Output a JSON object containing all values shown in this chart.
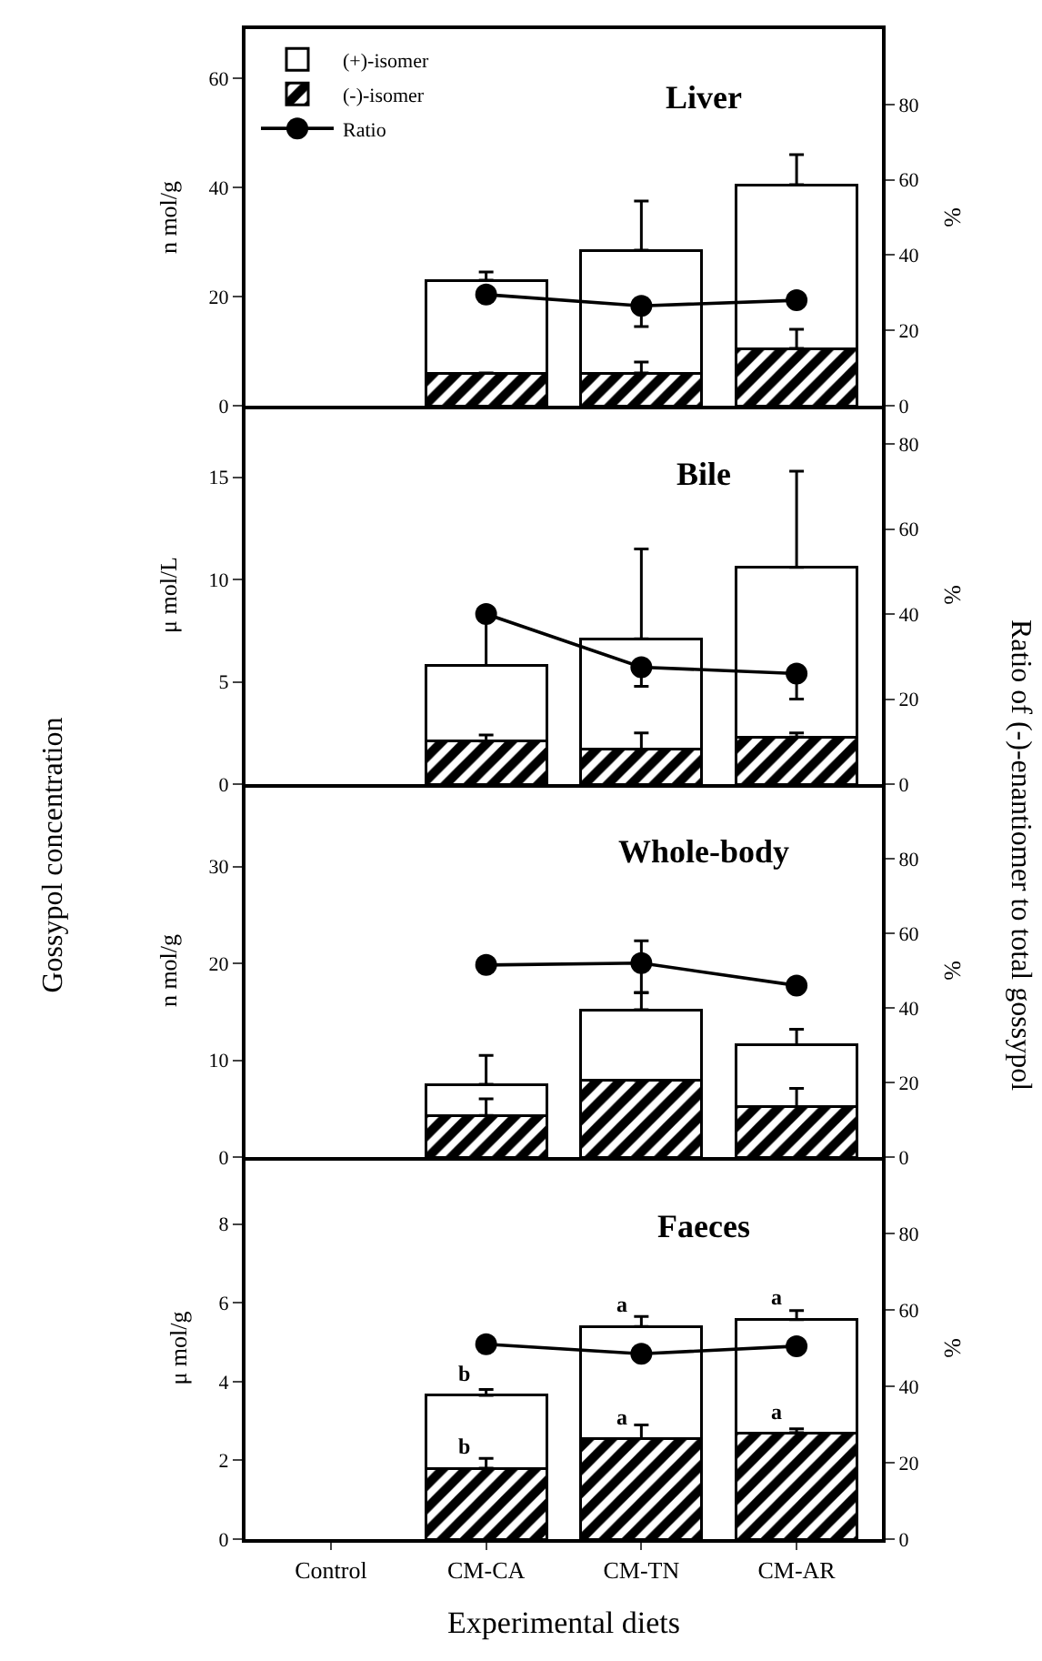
{
  "chart_data": [
    {
      "type": "bar",
      "stacked": true,
      "title": "Liver",
      "ylabel": "n mol/g",
      "y2label": "%",
      "categories": [
        null,
        null,
        null,
        null
      ],
      "series": [
        {
          "name": "(-)-isomer",
          "color": "#000000",
          "values": [
            null,
            6,
            6,
            10.5
          ],
          "errors": [
            null,
            null,
            [
              6,
              8
            ],
            [
              10.5,
              14
            ]
          ]
        },
        {
          "name": "(+)-isomer",
          "color": "#ffffff",
          "values": [
            null,
            17,
            22.5,
            30
          ],
          "errors": [
            null,
            [
              23,
              24.5
            ],
            [
              28.5,
              37.5
            ],
            [
              40.5,
              46
            ]
          ]
        },
        {
          "name": "Ratio",
          "type": "line",
          "axis": "y2",
          "color": "#000000",
          "values": [
            null,
            29.5,
            26.5,
            28
          ],
          "errors": [
            null,
            null,
            [
              21,
              26.5
            ],
            null
          ]
        }
      ],
      "ylim": [
        0,
        69
      ],
      "yticks": [
        0,
        20,
        40,
        60
      ],
      "y2lim": [
        0,
        100
      ],
      "y2ticks": [
        0,
        20,
        40,
        60,
        80
      ],
      "grid": false,
      "legend": "top left",
      "marker": "circle",
      "tick_labels": "y",
      "annotations": [
        "Gossypol concentration",
        "Ratio of (-)-enantiomer to total gossypol"
      ]
    },
    {
      "type": "bar",
      "stacked": true,
      "title": "Bile",
      "ylabel": "μ mol/L",
      "y2label": "%",
      "categories": [
        null,
        null,
        null,
        null
      ],
      "series": [
        {
          "color": "#000000",
          "values": [
            null,
            2.1,
            1.7,
            2.3
          ],
          "errors": [
            null,
            [
              2.1,
              2.4
            ],
            [
              1.7,
              2.5
            ],
            [
              2.3,
              2.5
            ]
          ]
        },
        {
          "color": "#ffffff",
          "values": [
            null,
            3.7,
            5.4,
            8.3
          ],
          "errors": [
            null,
            [
              5.8,
              8
            ],
            [
              7.1,
              11.5
            ],
            [
              10.6,
              15.3
            ]
          ]
        },
        {
          "type": "line",
          "axis": "y2",
          "color": "#000000",
          "values": [
            null,
            40,
            27.5,
            26
          ],
          "errors": [
            null,
            null,
            [
              23,
              27.5
            ],
            [
              20,
              26
            ]
          ]
        }
      ],
      "ylim": [
        0,
        18.5
      ],
      "yticks": [
        0,
        5,
        10,
        15
      ],
      "y2lim": [
        0,
        89
      ],
      "y2ticks": [
        0,
        20,
        40,
        60,
        80
      ],
      "grid": false,
      "legend": false,
      "marker": "circle",
      "tick_labels": "y"
    },
    {
      "type": "bar",
      "stacked": true,
      "title": "Whole-body",
      "ylabel": "n mol/g",
      "y2label": "%",
      "categories": [
        null,
        null,
        null,
        null
      ],
      "series": [
        {
          "color": "#000000",
          "values": [
            null,
            4.3,
            7.9,
            5.2
          ],
          "errors": [
            null,
            [
              4.3,
              6
            ],
            null,
            [
              5.2,
              7.1
            ]
          ]
        },
        {
          "color": "#ffffff",
          "values": [
            null,
            3.2,
            7.3,
            6.4
          ],
          "errors": [
            null,
            [
              7.5,
              10.5
            ],
            [
              15.2,
              17
            ],
            [
              11.6,
              13.2
            ]
          ]
        },
        {
          "type": "line",
          "axis": "y2",
          "color": "#000000",
          "values": [
            null,
            51.5,
            52,
            46
          ],
          "errors": [
            null,
            null,
            [
              44,
              58
            ],
            null
          ]
        }
      ],
      "ylim": [
        0,
        38.5
      ],
      "yticks": [
        0,
        10,
        20,
        30
      ],
      "y2lim": [
        0,
        100
      ],
      "y2ticks": [
        0,
        20,
        40,
        60,
        80
      ],
      "grid": false,
      "legend": false,
      "marker": "circle",
      "tick_labels": "y"
    },
    {
      "type": "bar",
      "stacked": true,
      "title": "Faeces",
      "ylabel": "μ mol/g",
      "y2label": "%",
      "xlabel": "Experimental diets",
      "categories": [
        "Control",
        "CM-CA",
        "CM-TN",
        "CM-AR"
      ],
      "series": [
        {
          "color": "#000000",
          "values": [
            null,
            1.8,
            2.55,
            2.7
          ],
          "errors": [
            null,
            [
              1.8,
              2.05
            ],
            [
              2.55,
              2.9
            ],
            [
              2.7,
              2.8
            ]
          ]
        },
        {
          "color": "#ffffff",
          "values": [
            null,
            1.85,
            2.85,
            2.87
          ],
          "errors": [
            null,
            [
              3.65,
              3.8
            ],
            [
              5.4,
              5.65
            ],
            [
              5.57,
              5.8
            ]
          ]
        },
        {
          "type": "line",
          "axis": "y2",
          "color": "#000000",
          "values": [
            null,
            51,
            48.5,
            50.5
          ]
        }
      ],
      "ylim": [
        0,
        9.7
      ],
      "yticks": [
        0,
        2,
        4,
        6,
        8
      ],
      "y2lim": [
        0,
        100
      ],
      "y2ticks": [
        0,
        20,
        40,
        60,
        80
      ],
      "grid": false,
      "legend": false,
      "marker": "circle",
      "annotations": [
        {
          "text": "b",
          "x": "CM-CA",
          "y": 3.65
        },
        {
          "text": "b",
          "x": "CM-CA",
          "y": 1.8
        },
        {
          "text": "a",
          "x": "CM-TN",
          "y": 5.4
        },
        {
          "text": "a",
          "x": "CM-TN",
          "y": 2.55
        },
        {
          "text": "a",
          "x": "CM-AR",
          "y": 5.57
        },
        {
          "text": "a",
          "x": "CM-AR",
          "y": 2.7
        }
      ]
    }
  ]
}
